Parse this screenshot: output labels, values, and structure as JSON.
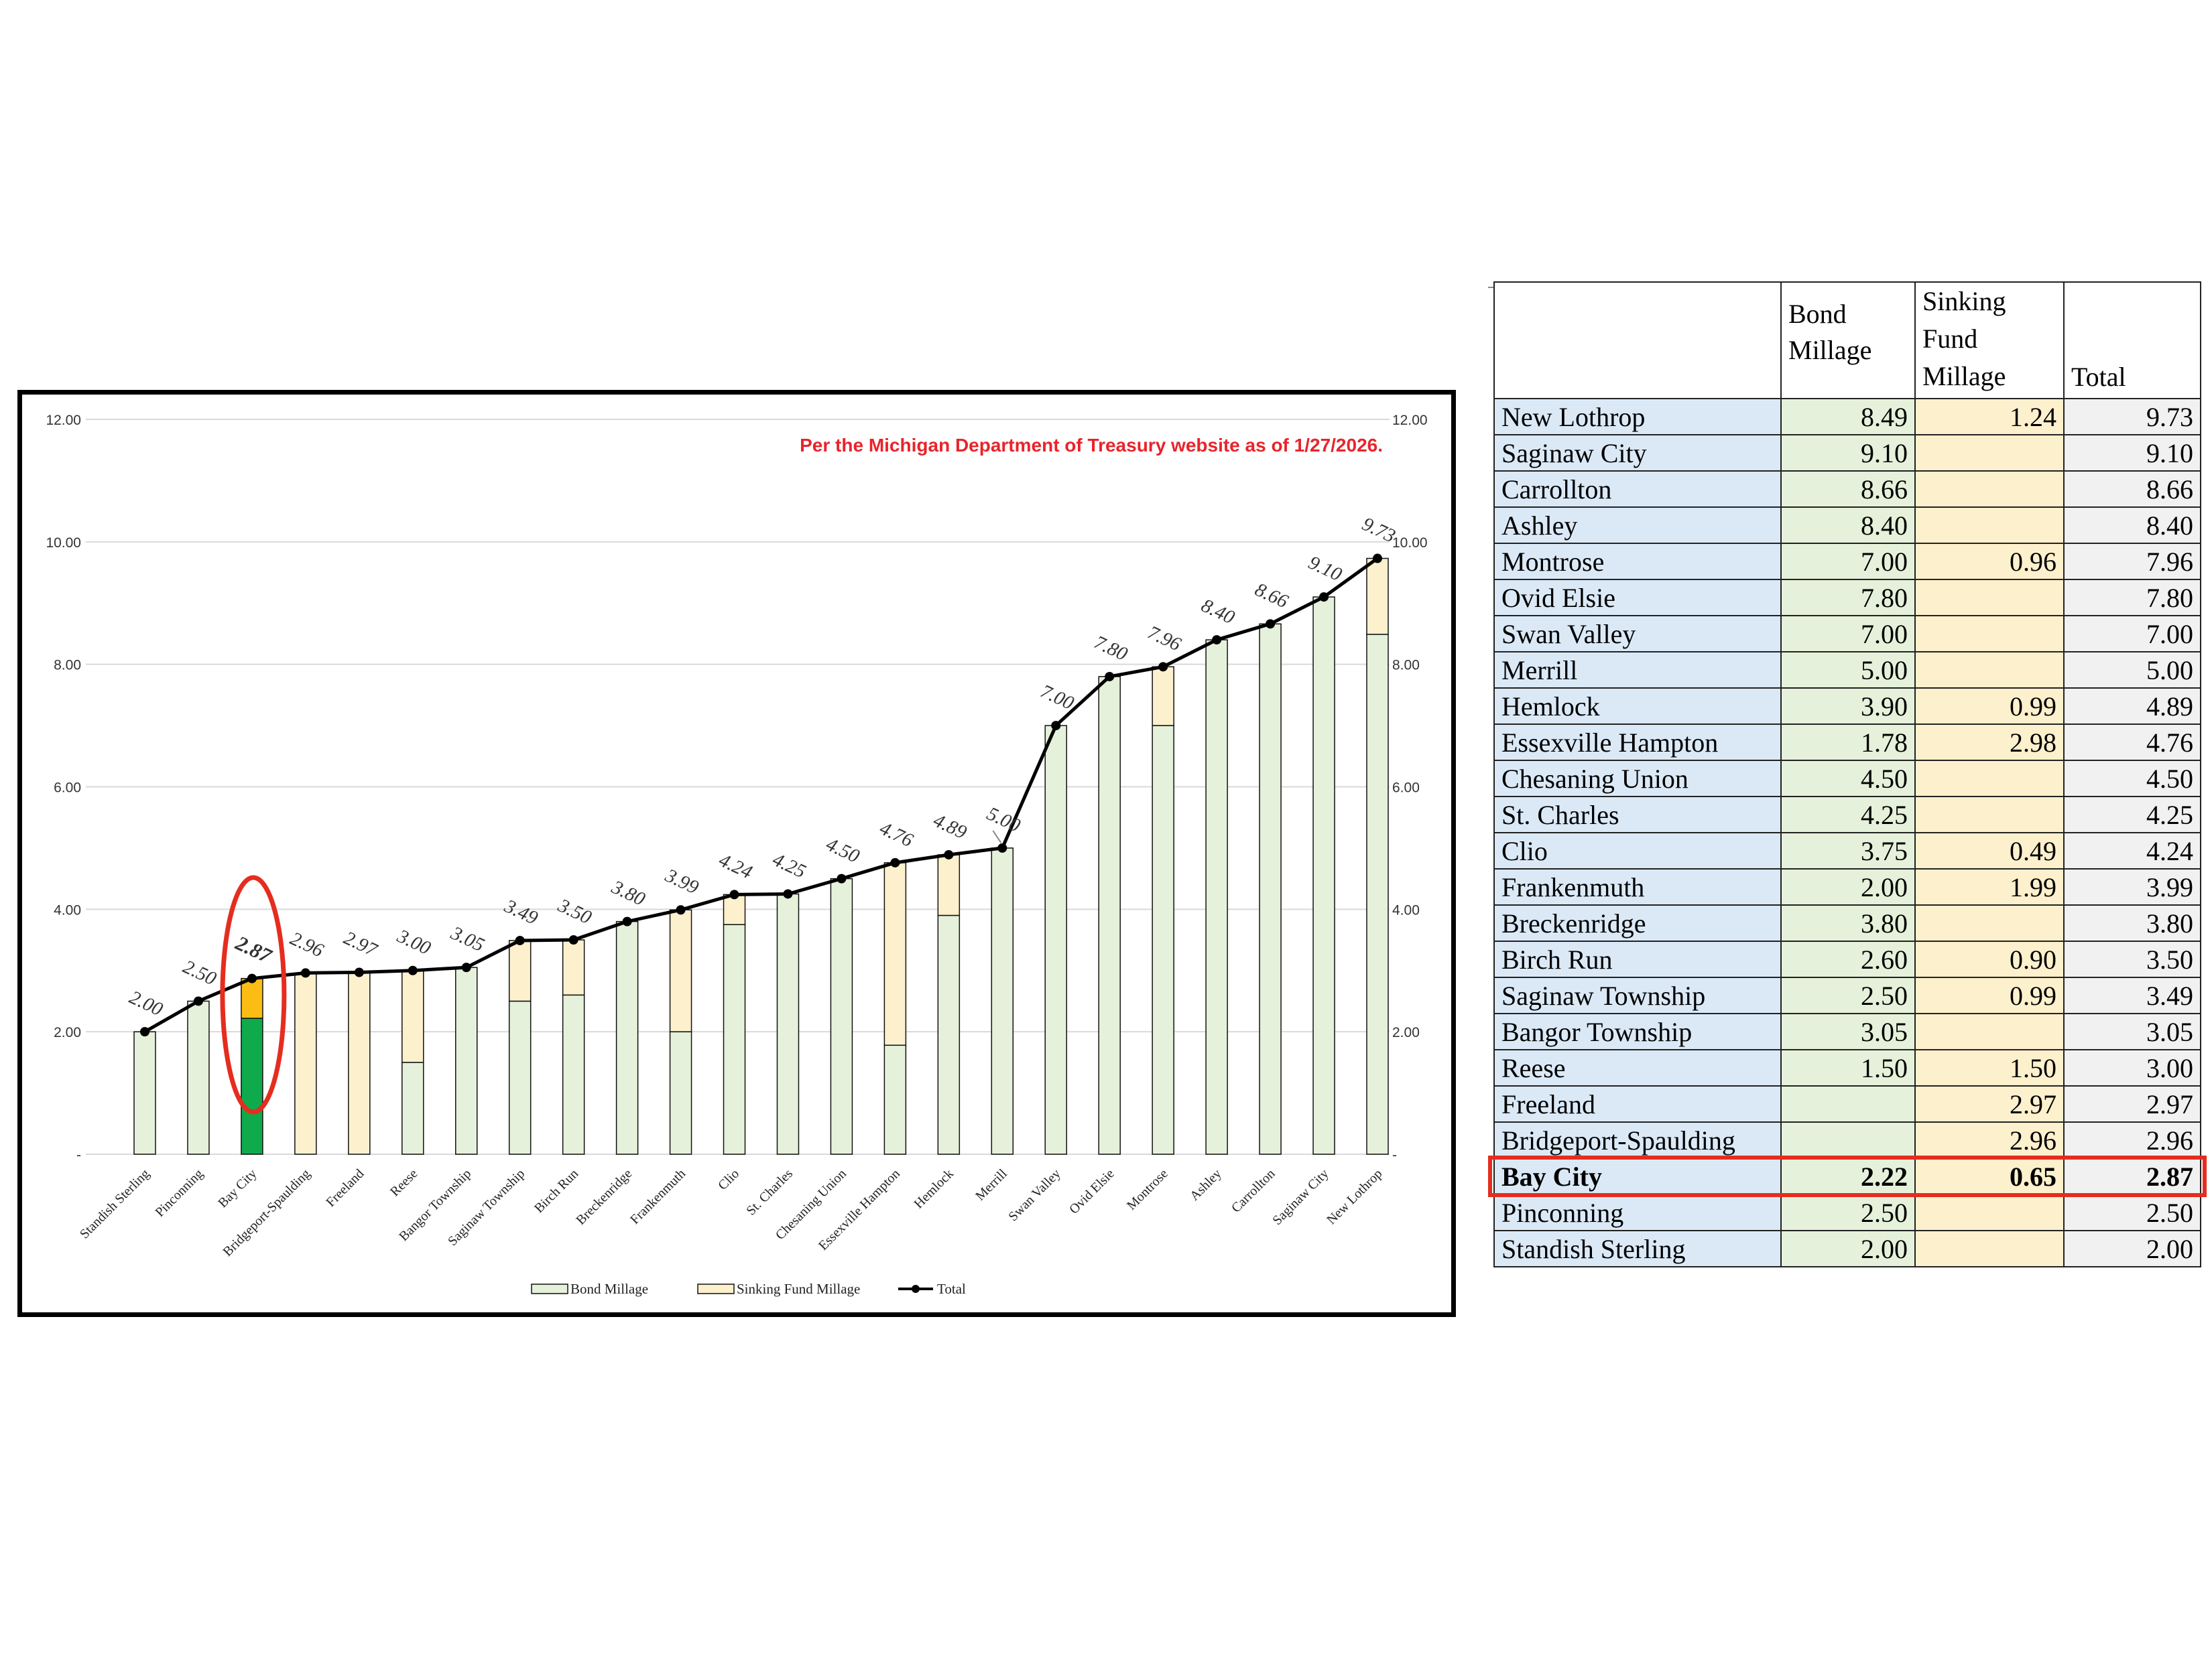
{
  "note": "Per the Michigan Department of Treasury website as of 1/27/2026.",
  "highlight": "Bay City",
  "colors": {
    "bond": "#e5f1da",
    "sink": "#fdf0cd",
    "bond_highlight": "#0faa4b",
    "sink_highlight": "#fbbd14",
    "note_red": "#e8242b",
    "highlight_red": "#e52d1f"
  },
  "chart_data": {
    "type": "bar",
    "stacked": true,
    "categories": [
      "Standish Sterling",
      "Pinconning",
      "Bay City",
      "Bridgeport-Spaulding",
      "Freeland",
      "Reese",
      "Bangor Township",
      "Saginaw Township",
      "Birch Run",
      "Breckenridge",
      "Frankenmuth",
      "Clio",
      "St. Charles",
      "Chesaning Union",
      "Essexville Hampton",
      "Hemlock",
      "Merrill",
      "Swan Valley",
      "Ovid Elsie",
      "Montrose",
      "Ashley",
      "Carrollton",
      "Saginaw City",
      "New Lothrop"
    ],
    "series": [
      {
        "name": "Bond Millage",
        "values": [
          2.0,
          2.5,
          2.22,
          0,
          0,
          1.5,
          3.05,
          2.5,
          2.6,
          3.8,
          2.0,
          3.75,
          4.25,
          4.5,
          1.78,
          3.9,
          5.0,
          7.0,
          7.8,
          7.0,
          8.4,
          8.66,
          9.1,
          8.49
        ]
      },
      {
        "name": "Sinking Fund Millage",
        "values": [
          0,
          0,
          0.65,
          2.96,
          2.97,
          1.5,
          0,
          0.99,
          0.9,
          0,
          1.99,
          0.49,
          0,
          0,
          2.98,
          0.99,
          0,
          0,
          0,
          0.96,
          0,
          0,
          0,
          1.24
        ]
      },
      {
        "name": "Total",
        "type": "line",
        "values": [
          2.0,
          2.5,
          2.87,
          2.96,
          2.97,
          3.0,
          3.05,
          3.49,
          3.5,
          3.8,
          3.99,
          4.24,
          4.25,
          4.5,
          4.76,
          4.89,
          5.0,
          7.0,
          7.8,
          7.96,
          8.4,
          8.66,
          9.1,
          9.73
        ]
      }
    ],
    "total_labels": [
      "2.00",
      "2.50",
      "2.87",
      "2.96",
      "2.97",
      "3.00",
      "3.05",
      "3.49",
      "3.50",
      "3.80",
      "3.99",
      "4.24",
      "4.25",
      "4.50",
      "4.76",
      "4.89",
      "5.00",
      "7.00",
      "7.80",
      "7.96",
      "8.40",
      "8.66",
      "9.10",
      "9.73"
    ],
    "y_ticks": [
      "-",
      "2.00",
      "4.00",
      "6.00",
      "8.00",
      "10.00",
      "12.00"
    ],
    "ylim": [
      0,
      12
    ],
    "grid": true,
    "legend_position": "bottom",
    "legend": [
      "Bond Millage",
      "Sinking Fund Millage",
      "Total"
    ]
  },
  "table": {
    "headers": [
      "",
      "Bond Millage",
      "Sinking Fund Millage",
      "Total"
    ],
    "rows": [
      {
        "name": "New Lothrop",
        "bond": "8.49",
        "sink": "1.24",
        "total": "9.73"
      },
      {
        "name": "Saginaw City",
        "bond": "9.10",
        "sink": "",
        "total": "9.10"
      },
      {
        "name": "Carrollton",
        "bond": "8.66",
        "sink": "",
        "total": "8.66"
      },
      {
        "name": "Ashley",
        "bond": "8.40",
        "sink": "",
        "total": "8.40"
      },
      {
        "name": "Montrose",
        "bond": "7.00",
        "sink": "0.96",
        "total": "7.96"
      },
      {
        "name": "Ovid Elsie",
        "bond": "7.80",
        "sink": "",
        "total": "7.80"
      },
      {
        "name": "Swan Valley",
        "bond": "7.00",
        "sink": "",
        "total": "7.00"
      },
      {
        "name": "Merrill",
        "bond": "5.00",
        "sink": "",
        "total": "5.00"
      },
      {
        "name": "Hemlock",
        "bond": "3.90",
        "sink": "0.99",
        "total": "4.89"
      },
      {
        "name": "Essexville Hampton",
        "bond": "1.78",
        "sink": "2.98",
        "total": "4.76"
      },
      {
        "name": "Chesaning Union",
        "bond": "4.50",
        "sink": "",
        "total": "4.50"
      },
      {
        "name": "St. Charles",
        "bond": "4.25",
        "sink": "",
        "total": "4.25"
      },
      {
        "name": "Clio",
        "bond": "3.75",
        "sink": "0.49",
        "total": "4.24"
      },
      {
        "name": "Frankenmuth",
        "bond": "2.00",
        "sink": "1.99",
        "total": "3.99"
      },
      {
        "name": "Breckenridge",
        "bond": "3.80",
        "sink": "",
        "total": "3.80"
      },
      {
        "name": "Birch Run",
        "bond": "2.60",
        "sink": "0.90",
        "total": "3.50"
      },
      {
        "name": "Saginaw Township",
        "bond": "2.50",
        "sink": "0.99",
        "total": "3.49"
      },
      {
        "name": "Bangor Township",
        "bond": "3.05",
        "sink": "",
        "total": "3.05"
      },
      {
        "name": "Reese",
        "bond": "1.50",
        "sink": "1.50",
        "total": "3.00"
      },
      {
        "name": "Freeland",
        "bond": "",
        "sink": "2.97",
        "total": "2.97"
      },
      {
        "name": "Bridgeport-Spaulding",
        "bond": "",
        "sink": "2.96",
        "total": "2.96"
      },
      {
        "name": "Bay City",
        "bond": "2.22",
        "sink": "0.65",
        "total": "2.87"
      },
      {
        "name": "Pinconning",
        "bond": "2.50",
        "sink": "",
        "total": "2.50"
      },
      {
        "name": "Standish Sterling",
        "bond": "2.00",
        "sink": "",
        "total": "2.00"
      }
    ]
  }
}
